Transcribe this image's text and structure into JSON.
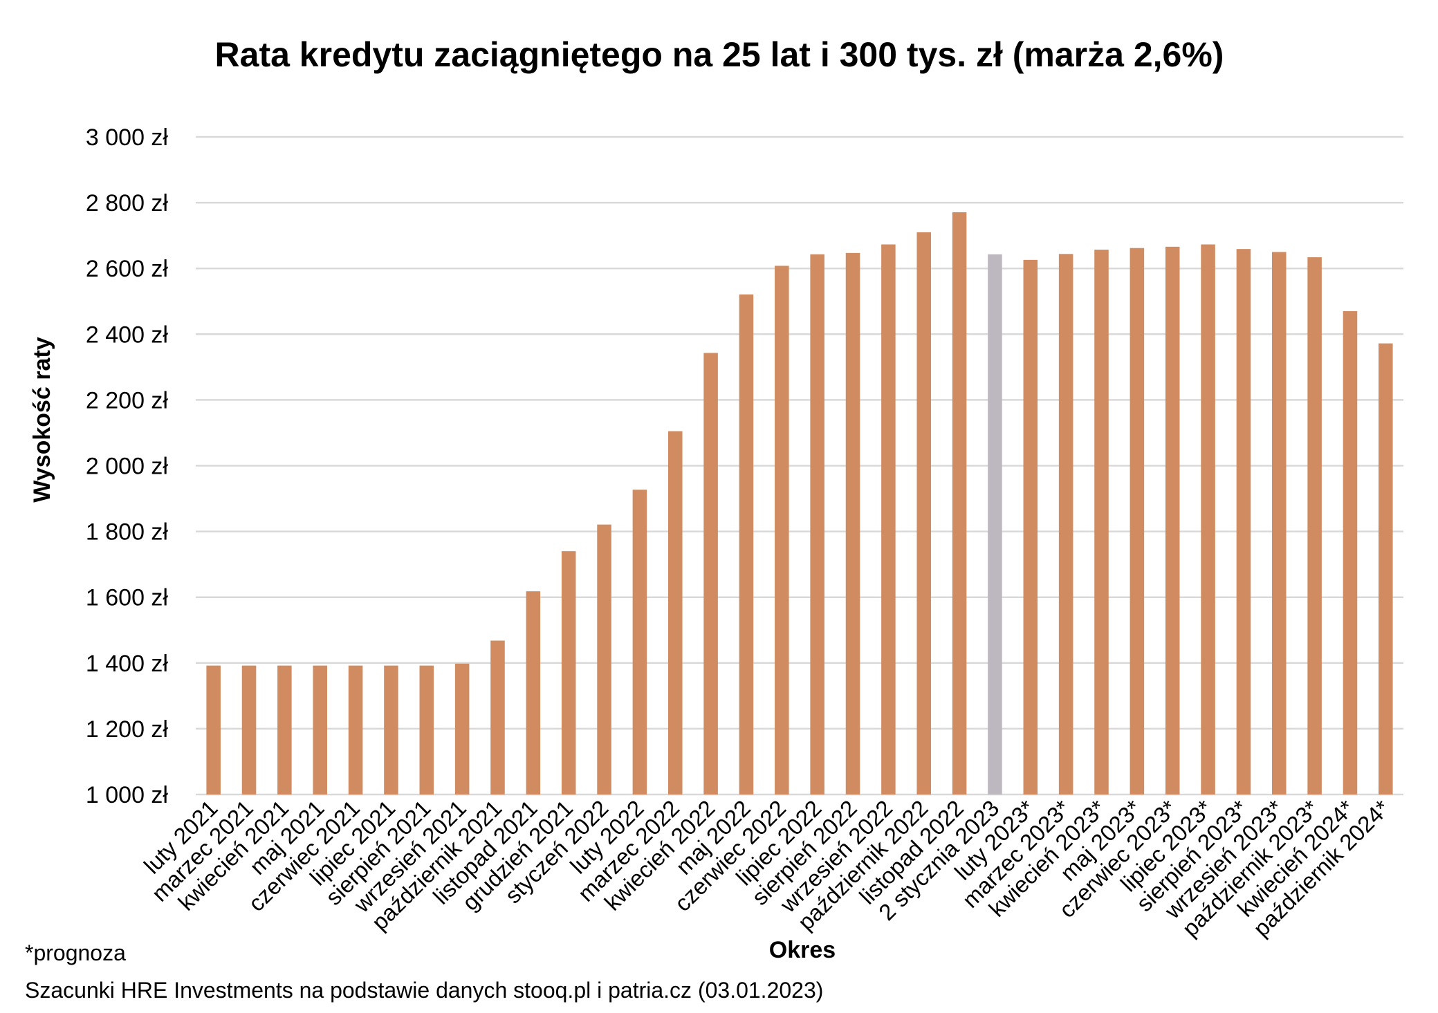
{
  "chart_data": {
    "type": "bar",
    "title": "Rata kredytu zaciągniętego na 25 lat i 300 tys. zł (marża 2,6%)",
    "xlabel": "Okres",
    "ylabel": "Wysokość raty",
    "ylim": [
      1000,
      3000
    ],
    "yticks": [
      1000,
      1200,
      1400,
      1600,
      1800,
      2000,
      2200,
      2400,
      2600,
      2800,
      3000
    ],
    "ytick_labels": [
      "1 000 zł",
      "1 200 zł",
      "1 400 zł",
      "1 600 zł",
      "1 800 zł",
      "2 000 zł",
      "2 200 zł",
      "2 400 zł",
      "2 600 zł",
      "2 800 zł",
      "3 000 zł"
    ],
    "grid": true,
    "categories": [
      "luty 2021",
      "marzec 2021",
      "kwiecień 2021",
      "maj 2021",
      "czerwiec 2021",
      "lipiec 2021",
      "sierpień 2021",
      "wrzesień 2021",
      "październik 2021",
      "listopad 2021",
      "grudzień 2021",
      "styczeń 2022",
      "luty 2022",
      "marzec 2022",
      "kwiecień 2022",
      "maj 2022",
      "czerwiec 2022",
      "lipiec 2022",
      "sierpień 2022",
      "wrzesień 2022",
      "październik 2022",
      "listopad 2022",
      "2 stycznia 2023",
      "luty 2023*",
      "marzec 2023*",
      "kwiecień 2023*",
      "maj 2023*",
      "czerwiec 2023*",
      "lipiec 2023*",
      "sierpień 2023*",
      "wrzesień 2023*",
      "październik 2023*",
      "kwiecień 2024*",
      "październik 2024*"
    ],
    "values": [
      1392,
      1392,
      1392,
      1392,
      1392,
      1392,
      1392,
      1398,
      1468,
      1618,
      1740,
      1821,
      1927,
      2105,
      2343,
      2521,
      2608,
      2643,
      2647,
      2673,
      2710,
      2771,
      2643,
      2626,
      2644,
      2657,
      2662,
      2666,
      2673,
      2659,
      2650,
      2634,
      2470,
      2372
    ],
    "highlight_index": 22,
    "colors": {
      "bar": "#D08C60",
      "highlight": "#BDB7C0",
      "grid": "#D9D9D9"
    }
  },
  "footnotes": {
    "forecast": "*prognoza",
    "source": "Szacunki HRE Investments na podstawie danych stooq.pl i patria.cz (03.01.2023)"
  }
}
